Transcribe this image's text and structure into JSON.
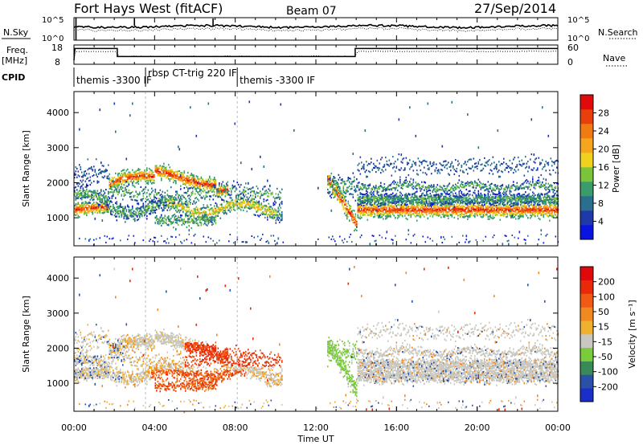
{
  "header": {
    "station": "Fort Hays West (fitACF)",
    "beam": "Beam 07",
    "date": "27/Sep/2014"
  },
  "top_panels": {
    "nsky_label": "N.Sky",
    "nsky_ticks": [
      "10^5",
      "10^0"
    ],
    "nsearch_label": "N.Search",
    "nsearch_ticks": [
      "10^5",
      "10^0"
    ],
    "freq_label": "Freq.",
    "freq_unit": "[MHz]",
    "freq_ticks": [
      "18",
      "8"
    ],
    "nave_label": "Nave",
    "nave_ticks": [
      "60",
      "0"
    ],
    "cpid_label": "CPID",
    "cpid_segments": [
      {
        "label": "themis -3300 IF",
        "start_h": 0
      },
      {
        "label": "rbsp CT-trig 220 IF",
        "start_h": 3.55
      },
      {
        "label": "themis -3300 IF",
        "start_h": 8.1
      }
    ]
  },
  "chart_data": [
    {
      "type": "heatmap",
      "name": "power-panel",
      "ylabel": "Slant Range [km]",
      "xlabel": "",
      "yticks": [
        1000,
        2000,
        3000,
        4000
      ],
      "ylim": [
        200,
        4600
      ],
      "xlim": [
        0,
        24
      ],
      "colorbar": {
        "label": "Power [dB]",
        "ticks": [
          4,
          8,
          12,
          16,
          20,
          24,
          28
        ],
        "range": [
          0,
          32
        ],
        "colors": [
          "#0a14e0",
          "#1e3aa8",
          "#2a6f8e",
          "#3a9c6a",
          "#7ac43c",
          "#f0d21e",
          "#f5a51e",
          "#f27a14",
          "#e8400c",
          "#e00a0a"
        ]
      }
    },
    {
      "type": "heatmap",
      "name": "velocity-panel",
      "ylabel": "Slant Range [km]",
      "xlabel": "Time UT",
      "yticks": [
        1000,
        2000,
        3000,
        4000
      ],
      "ylim": [
        200,
        4600
      ],
      "xlim": [
        0,
        24
      ],
      "xticks": [
        "00:00",
        "04:00",
        "08:00",
        "12:00",
        "16:00",
        "20:00",
        "00:00"
      ],
      "colorbar": {
        "label": "Velocity [m s⁻¹]",
        "ticks": [
          "200",
          "100",
          "50",
          "15",
          "-15",
          "-50",
          "-100",
          "-200"
        ],
        "colors": [
          "#1a2ec8",
          "#2a50a8",
          "#3a8a58",
          "#7acc3c",
          "#c8c8c0",
          "#f0b030",
          "#f08a20",
          "#f05a14",
          "#e82a0a",
          "#e00808"
        ]
      }
    }
  ]
}
